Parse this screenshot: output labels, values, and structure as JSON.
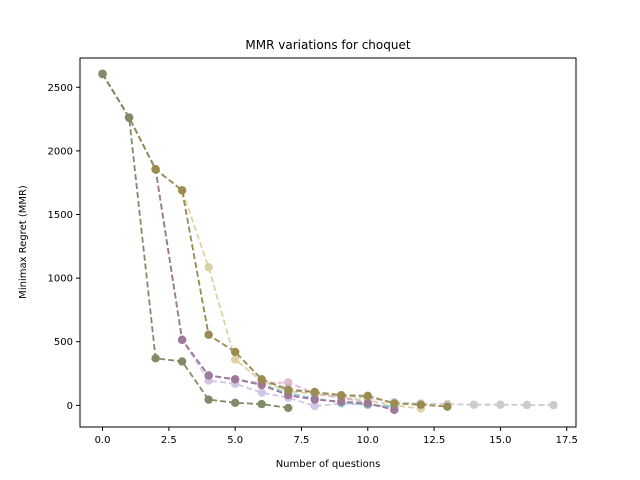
{
  "chart_data": {
    "type": "line",
    "title": "MMR variations for choquet",
    "xlabel": "Number of questions",
    "ylabel": "Minimax Regret (MMR)",
    "xlim": [
      -0.85,
      17.85
    ],
    "ylim": [
      -170,
      2730
    ],
    "xticks": [
      0.0,
      2.5,
      5.0,
      7.5,
      10.0,
      12.5,
      15.0,
      17.5
    ],
    "xtick_labels": [
      "0.0",
      "2.5",
      "5.0",
      "7.5",
      "10.0",
      "12.5",
      "15.0",
      "17.5"
    ],
    "yticks": [
      0,
      500,
      1000,
      1500,
      2000,
      2500
    ],
    "ytick_labels": [
      "0",
      "500",
      "1000",
      "1500",
      "2000",
      "2500"
    ],
    "grid": false,
    "legend": "none",
    "line_style": "dashed",
    "series": [
      {
        "color": "#c0c0c0",
        "opacity": 0.8,
        "x": [
          0,
          1,
          2,
          3,
          4,
          5,
          6,
          7,
          8,
          9,
          10,
          11,
          12,
          13,
          14,
          15,
          16,
          17
        ],
        "y": [
          2605,
          2262,
          1855,
          1690,
          555,
          420,
          205,
          135,
          100,
          75,
          60,
          25,
          15,
          10,
          5,
          5,
          3,
          2
        ]
      },
      {
        "color": "#d4c890",
        "opacity": 0.8,
        "x": [
          0,
          1,
          2,
          3,
          4,
          5,
          6,
          7,
          8,
          9,
          10,
          11,
          12
        ],
        "y": [
          2605,
          2262,
          1855,
          1690,
          1085,
          360,
          190,
          110,
          90,
          60,
          40,
          0,
          -25
        ]
      },
      {
        "color": "#cfa0b8",
        "opacity": 0.7,
        "x": [
          0,
          1,
          2,
          3,
          4,
          5,
          6,
          7,
          8,
          9,
          10,
          11
        ],
        "y": [
          2605,
          2262,
          1855,
          515,
          235,
          205,
          175,
          180,
          95,
          60,
          20,
          -35
        ]
      },
      {
        "color": "#c8b8e0",
        "opacity": 0.8,
        "x": [
          0,
          1,
          2,
          3,
          4,
          5,
          6,
          7,
          8,
          9,
          10,
          11
        ],
        "y": [
          2605,
          2262,
          1855,
          515,
          195,
          170,
          100,
          60,
          -5,
          15,
          5,
          -10
        ]
      },
      {
        "color": "#70c0c8",
        "opacity": 0.8,
        "x": [
          0,
          1,
          2,
          3,
          4,
          5,
          6,
          7,
          8,
          9,
          10,
          11
        ],
        "y": [
          2605,
          2262,
          1855,
          515,
          235,
          205,
          165,
          95,
          55,
          20,
          5,
          -10
        ]
      },
      {
        "color": "#a07898",
        "opacity": 1.0,
        "x": [
          0,
          1,
          2,
          3,
          4,
          5,
          6,
          7,
          8,
          9,
          10,
          11
        ],
        "y": [
          2605,
          2262,
          1855,
          515,
          235,
          205,
          160,
          80,
          45,
          30,
          15,
          -35
        ]
      },
      {
        "color": "#9a8c50",
        "opacity": 1.0,
        "x": [
          0,
          1,
          2,
          3,
          4,
          5,
          6,
          7,
          8,
          9,
          10,
          11,
          12,
          13
        ],
        "y": [
          2605,
          2262,
          1855,
          1690,
          555,
          420,
          205,
          120,
          105,
          80,
          75,
          15,
          5,
          -10
        ]
      },
      {
        "color": "#808c68",
        "opacity": 1.0,
        "x": [
          0,
          1,
          2,
          3,
          4,
          5,
          6,
          7
        ],
        "y": [
          2605,
          2262,
          370,
          345,
          45,
          20,
          10,
          -20
        ]
      }
    ]
  }
}
